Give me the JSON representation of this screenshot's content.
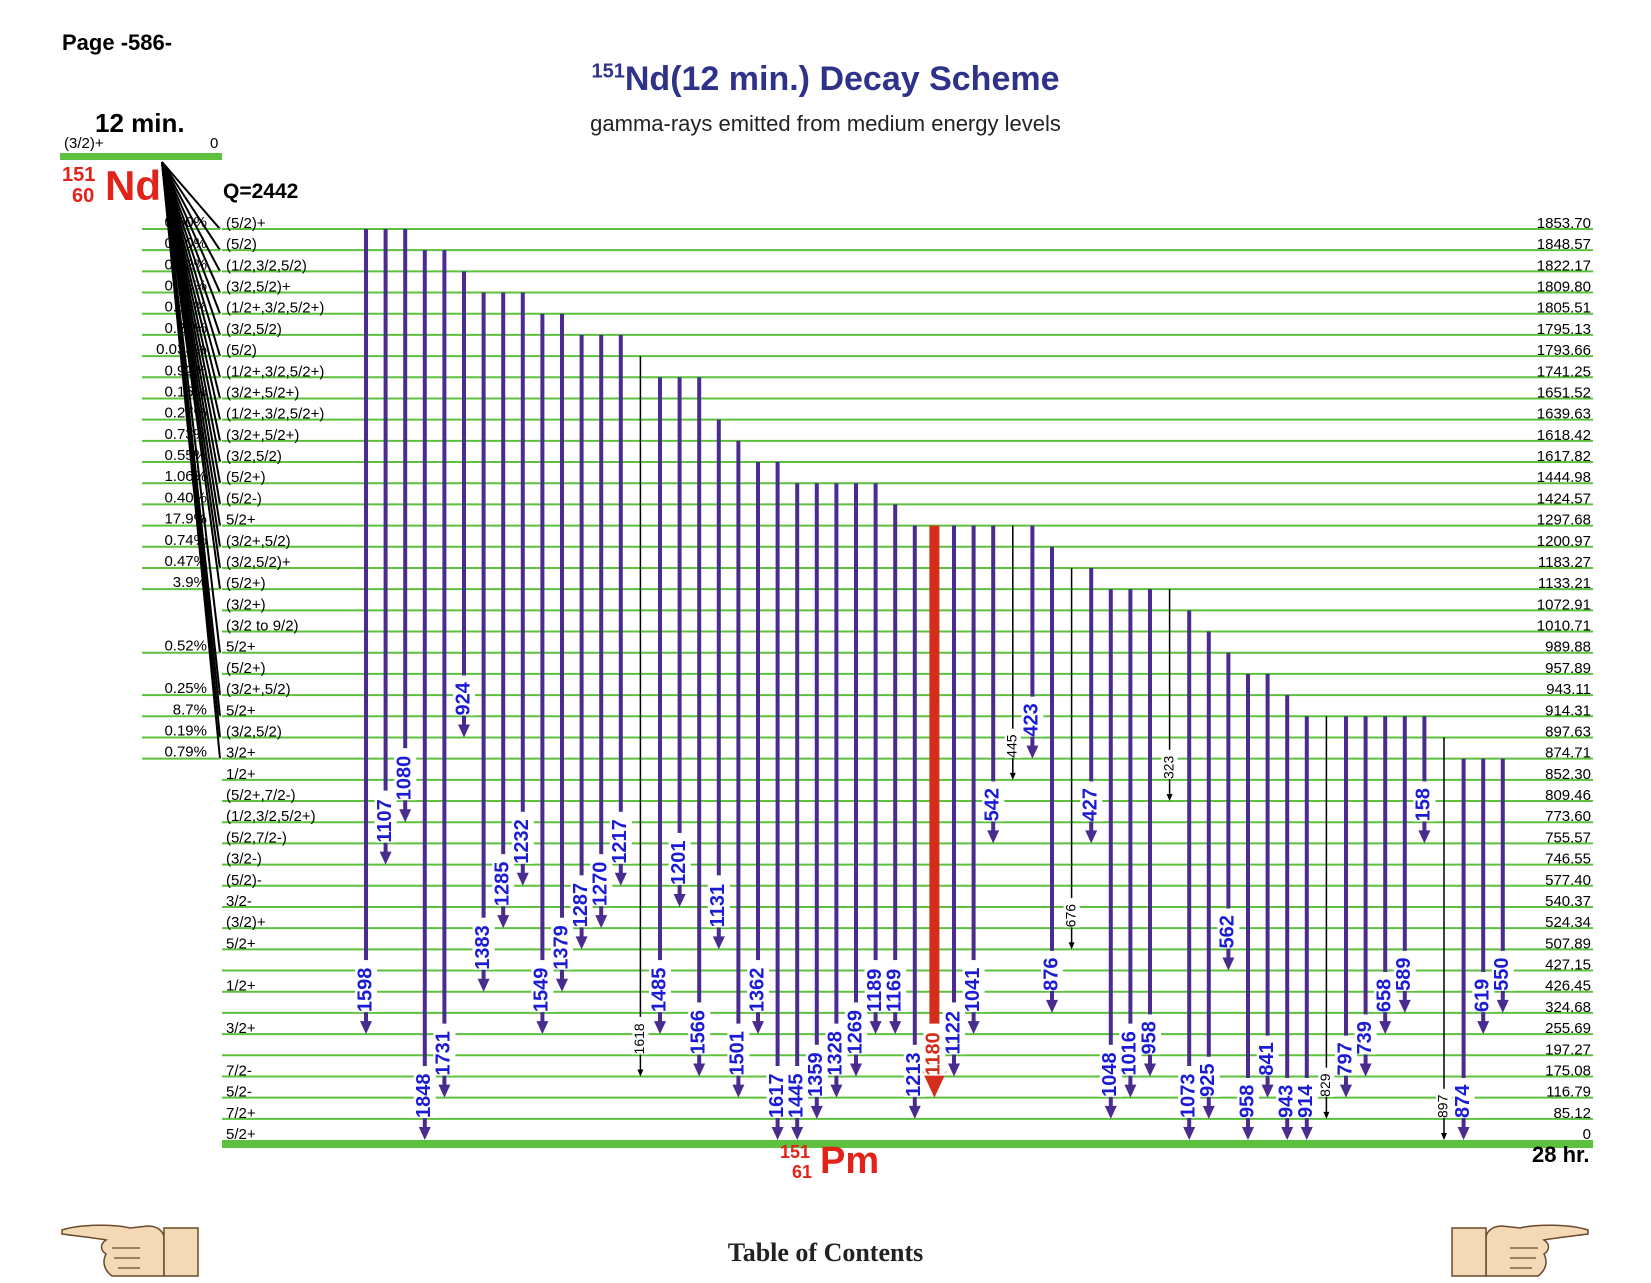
{
  "page_label": "Page -586-",
  "title": {
    "sup": "151",
    "main": "Nd(12 min.) Decay Scheme"
  },
  "subtitle": "gamma-rays emitted from medium energy levels",
  "parent": {
    "halflife": "12 min.",
    "spin": "(3/2)+",
    "energy": "0",
    "mass_number": "151",
    "atomic_number": "60",
    "symbol": "Nd",
    "qvalue": "Q=2442"
  },
  "daughter": {
    "mass_number": "151",
    "atomic_number": "61",
    "symbol": "Pm",
    "halflife": "28 hr."
  },
  "toc_link": "Table of Contents",
  "colors": {
    "level": "#5ec13e",
    "gamma": "#4a2c8f",
    "gamma_label": "#1b1bd6",
    "strong": "#d42d1a",
    "weak": "#000000",
    "title": "#2f3289",
    "nuclide": "#e2231a"
  },
  "icons": {
    "prev": "pointing-hand-right-icon",
    "next": "pointing-hand-left-icon"
  },
  "levels": [
    {
      "e": 1853.7,
      "label": "1853.70",
      "spin": "(5/2)+",
      "beta": "0.80%"
    },
    {
      "e": 1848.57,
      "label": "1848.57",
      "spin": "(5/2)",
      "beta": "0.40%"
    },
    {
      "e": 1822.17,
      "label": "1822.17",
      "spin": "(1/2,3/2,5/2)",
      "beta": "0.12%"
    },
    {
      "e": 1809.8,
      "label": "1809.80",
      "spin": "(3/2,5/2)+",
      "beta": "0.95%"
    },
    {
      "e": 1805.51,
      "label": "1805.51",
      "spin": "(1/2+,3/2,5/2+)",
      "beta": "0.58%"
    },
    {
      "e": 1795.13,
      "label": "1795.13",
      "spin": "(3/2,5/2)",
      "beta": "0.25%"
    },
    {
      "e": 1793.66,
      "label": "1793.66",
      "spin": "(5/2)",
      "beta": "0.033%"
    },
    {
      "e": 1741.25,
      "label": "1741.25",
      "spin": "(1/2+,3/2,5/2+)",
      "beta": "0.92%"
    },
    {
      "e": 1651.52,
      "label": "1651.52",
      "spin": "(3/2+,5/2+)",
      "beta": "0.15%"
    },
    {
      "e": 1639.63,
      "label": "1639.63",
      "spin": "(1/2+,3/2,5/2+)",
      "beta": "0.27%"
    },
    {
      "e": 1618.42,
      "label": "1618.42",
      "spin": "(3/2+,5/2+)",
      "beta": "0.73%"
    },
    {
      "e": 1617.82,
      "label": "1617.82",
      "spin": "(3/2,5/2)",
      "beta": "0.55%"
    },
    {
      "e": 1444.98,
      "label": "1444.98",
      "spin": "(5/2+)",
      "beta": "1.06%"
    },
    {
      "e": 1424.57,
      "label": "1424.57",
      "spin": "(5/2-)",
      "beta": "0.40%"
    },
    {
      "e": 1297.68,
      "label": "1297.68",
      "spin": "5/2+",
      "beta": "17.9%"
    },
    {
      "e": 1200.97,
      "label": "1200.97",
      "spin": "(3/2+,5/2)",
      "beta": "0.74%"
    },
    {
      "e": 1183.27,
      "label": "1183.27",
      "spin": "(3/2,5/2)+",
      "beta": "0.47%"
    },
    {
      "e": 1133.21,
      "label": "1133.21",
      "spin": "(5/2+)",
      "beta": "3.9%"
    },
    {
      "e": 1072.91,
      "label": "1072.91",
      "spin": "(3/2+)",
      "beta": ""
    },
    {
      "e": 1010.71,
      "label": "1010.71",
      "spin": "(3/2 to 9/2)",
      "beta": ""
    },
    {
      "e": 989.88,
      "label": "989.88",
      "spin": "5/2+",
      "beta": "0.52%"
    },
    {
      "e": 957.89,
      "label": "957.89",
      "spin": "(5/2+)",
      "beta": ""
    },
    {
      "e": 943.11,
      "label": "943.11",
      "spin": "(3/2+,5/2)",
      "beta": "0.25%"
    },
    {
      "e": 914.31,
      "label": "914.31",
      "spin": "5/2+",
      "beta": "8.7%"
    },
    {
      "e": 897.63,
      "label": "897.63",
      "spin": "(3/2,5/2)",
      "beta": "0.19%"
    },
    {
      "e": 874.71,
      "label": "874.71",
      "spin": "3/2+",
      "beta": "0.79%"
    },
    {
      "e": 852.3,
      "label": "852.30",
      "spin": "1/2+",
      "beta": ""
    },
    {
      "e": 809.46,
      "label": "809.46",
      "spin": "(5/2+,7/2-)",
      "beta": ""
    },
    {
      "e": 773.6,
      "label": "773.60",
      "spin": "(1/2,3/2,5/2+)",
      "beta": ""
    },
    {
      "e": 755.57,
      "label": "755.57",
      "spin": "(5/2,7/2-)",
      "beta": ""
    },
    {
      "e": 746.55,
      "label": "746.55",
      "spin": "(3/2-)",
      "beta": ""
    },
    {
      "e": 577.4,
      "label": "577.40",
      "spin": "(5/2)-",
      "beta": ""
    },
    {
      "e": 540.37,
      "label": "540.37",
      "spin": "3/2-",
      "beta": ""
    },
    {
      "e": 524.34,
      "label": "524.34",
      "spin": "(3/2)+",
      "beta": ""
    },
    {
      "e": 507.89,
      "label": "507.89",
      "spin": "5/2+",
      "beta": ""
    },
    {
      "e": 427.15,
      "label": "427.15",
      "spin": "",
      "beta": ""
    },
    {
      "e": 426.45,
      "label": "426.45",
      "spin": "1/2+",
      "beta": ""
    },
    {
      "e": 324.68,
      "label": "324.68",
      "spin": "",
      "beta": ""
    },
    {
      "e": 255.69,
      "label": "255.69",
      "spin": "3/2+",
      "beta": ""
    },
    {
      "e": 197.27,
      "label": "197.27",
      "spin": "",
      "beta": ""
    },
    {
      "e": 175.08,
      "label": "175.08",
      "spin": "7/2-",
      "beta": ""
    },
    {
      "e": 116.79,
      "label": "116.79",
      "spin": "5/2-",
      "beta": ""
    },
    {
      "e": 85.12,
      "label": "85.12",
      "spin": "7/2+",
      "beta": ""
    },
    {
      "e": 0,
      "label": "0",
      "spin": "5/2+",
      "beta": ""
    }
  ],
  "gammas": [
    {
      "label": "1598",
      "from": 1853.7,
      "to": 255.69,
      "kind": "normal"
    },
    {
      "label": "1107",
      "from": 1853.7,
      "to": 746.55,
      "kind": "normal"
    },
    {
      "label": "1080",
      "from": 1853.7,
      "to": 773.6,
      "kind": "normal"
    },
    {
      "label": "1848",
      "from": 1848.57,
      "to": 0,
      "kind": "normal"
    },
    {
      "label": "1731",
      "from": 1848.57,
      "to": 116.79,
      "kind": "normal"
    },
    {
      "label": "924",
      "from": 1822.17,
      "to": 897.63,
      "kind": "normal"
    },
    {
      "label": "1383",
      "from": 1809.8,
      "to": 426.45,
      "kind": "normal"
    },
    {
      "label": "1285",
      "from": 1809.8,
      "to": 524.34,
      "kind": "normal"
    },
    {
      "label": "1232",
      "from": 1809.8,
      "to": 577.4,
      "kind": "normal"
    },
    {
      "label": "1549",
      "from": 1805.51,
      "to": 255.69,
      "kind": "normal"
    },
    {
      "label": "1379",
      "from": 1805.51,
      "to": 426.45,
      "kind": "normal"
    },
    {
      "label": "1287",
      "from": 1795.13,
      "to": 507.89,
      "kind": "normal"
    },
    {
      "label": "1270",
      "from": 1795.13,
      "to": 524.34,
      "kind": "normal"
    },
    {
      "label": "1217",
      "from": 1795.13,
      "to": 577.4,
      "kind": "normal"
    },
    {
      "label": "1618",
      "from": 1793.66,
      "to": 175.08,
      "kind": "weak"
    },
    {
      "label": "1485",
      "from": 1741.25,
      "to": 255.69,
      "kind": "normal"
    },
    {
      "label": "1201",
      "from": 1741.25,
      "to": 540.37,
      "kind": "normal"
    },
    {
      "label": "1566",
      "from": 1741.25,
      "to": 175.08,
      "kind": "normal"
    },
    {
      "label": "1131",
      "from": 1639.63,
      "to": 507.89,
      "kind": "normal"
    },
    {
      "label": "1501",
      "from": 1618.42,
      "to": 116.79,
      "kind": "normal"
    },
    {
      "label": "1362",
      "from": 1617.82,
      "to": 255.69,
      "kind": "normal"
    },
    {
      "label": "1617",
      "from": 1617.82,
      "to": 0,
      "kind": "normal"
    },
    {
      "label": "1445",
      "from": 1444.98,
      "to": 0,
      "kind": "normal"
    },
    {
      "label": "1359",
      "from": 1444.98,
      "to": 85.12,
      "kind": "normal"
    },
    {
      "label": "1328",
      "from": 1444.98,
      "to": 116.79,
      "kind": "normal"
    },
    {
      "label": "1269",
      "from": 1444.98,
      "to": 175.08,
      "kind": "normal"
    },
    {
      "label": "1189",
      "from": 1444.98,
      "to": 255.69,
      "kind": "normal"
    },
    {
      "label": "1169",
      "from": 1424.57,
      "to": 255.69,
      "kind": "normal"
    },
    {
      "label": "1213",
      "from": 1297.68,
      "to": 85.12,
      "kind": "normal"
    },
    {
      "label": "1180",
      "from": 1297.68,
      "to": 116.79,
      "kind": "strong"
    },
    {
      "label": "1122",
      "from": 1297.68,
      "to": 175.08,
      "kind": "normal"
    },
    {
      "label": "1041",
      "from": 1297.68,
      "to": 255.69,
      "kind": "normal"
    },
    {
      "label": "542",
      "from": 1297.68,
      "to": 755.57,
      "kind": "normal"
    },
    {
      "label": "445",
      "from": 1297.68,
      "to": 852.3,
      "kind": "weak"
    },
    {
      "label": "423",
      "from": 1297.68,
      "to": 874.71,
      "kind": "normal"
    },
    {
      "label": "876",
      "from": 1200.97,
      "to": 324.68,
      "kind": "normal"
    },
    {
      "label": "676",
      "from": 1183.27,
      "to": 507.89,
      "kind": "weak"
    },
    {
      "label": "427",
      "from": 1183.27,
      "to": 755.57,
      "kind": "normal"
    },
    {
      "label": "1048",
      "from": 1133.21,
      "to": 85.12,
      "kind": "normal"
    },
    {
      "label": "1016",
      "from": 1133.21,
      "to": 116.79,
      "kind": "normal"
    },
    {
      "label": "958",
      "from": 1133.21,
      "to": 175.08,
      "kind": "normal"
    },
    {
      "label": "323",
      "from": 1133.21,
      "to": 809.46,
      "kind": "weak"
    },
    {
      "label": "1073",
      "from": 1072.91,
      "to": 0,
      "kind": "normal"
    },
    {
      "label": "925",
      "from": 1010.71,
      "to": 85.12,
      "kind": "normal"
    },
    {
      "label": "562",
      "from": 989.88,
      "to": 427.15,
      "kind": "normal"
    },
    {
      "label": "958",
      "from": 957.89,
      "to": 0,
      "kind": "normal"
    },
    {
      "label": "841",
      "from": 957.89,
      "to": 116.79,
      "kind": "normal"
    },
    {
      "label": "943",
      "from": 943.11,
      "to": 0,
      "kind": "normal"
    },
    {
      "label": "914",
      "from": 914.31,
      "to": 0,
      "kind": "normal"
    },
    {
      "label": "829",
      "from": 914.31,
      "to": 85.12,
      "kind": "weak"
    },
    {
      "label": "797",
      "from": 914.31,
      "to": 116.79,
      "kind": "normal"
    },
    {
      "label": "739",
      "from": 914.31,
      "to": 175.08,
      "kind": "normal"
    },
    {
      "label": "658",
      "from": 914.31,
      "to": 255.69,
      "kind": "normal"
    },
    {
      "label": "589",
      "from": 914.31,
      "to": 324.68,
      "kind": "normal"
    },
    {
      "label": "158",
      "from": 914.31,
      "to": 755.57,
      "kind": "normal"
    },
    {
      "label": "897",
      "from": 897.63,
      "to": 0,
      "kind": "weak"
    },
    {
      "label": "874",
      "from": 874.71,
      "to": 0,
      "kind": "normal"
    },
    {
      "label": "619",
      "from": 874.71,
      "to": 255.69,
      "kind": "normal"
    },
    {
      "label": "550",
      "from": 874.71,
      "to": 324.68,
      "kind": "normal"
    }
  ]
}
